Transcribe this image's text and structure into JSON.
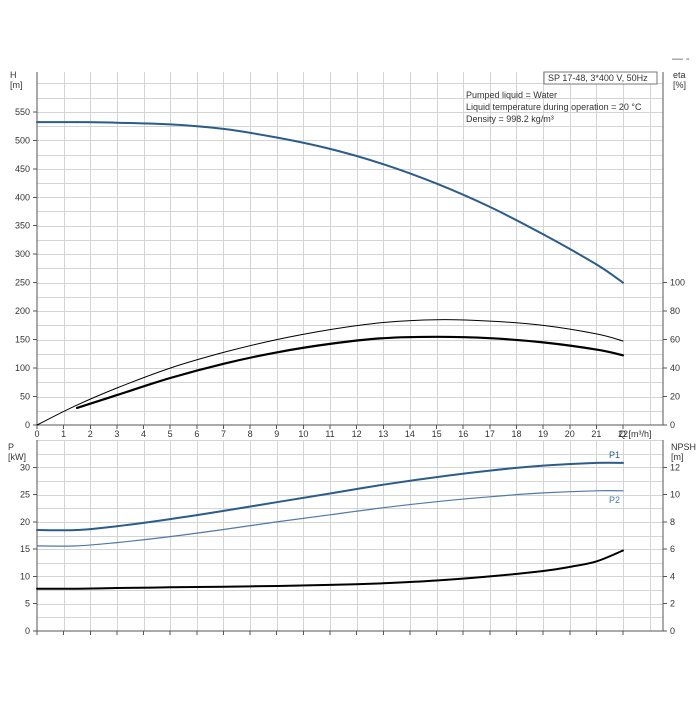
{
  "legend_text": {
    "title": "SP 17-48, 3*400 V, 50Hz",
    "liquid": "Pumped liquid = Water",
    "temperature": "Liquid temperature during operation = 20 °C",
    "density": "Density = 998.2 kg/m³"
  },
  "top_right_marker": "— -",
  "chart_data": [
    {
      "type": "line",
      "title": "",
      "xlabel": "Q [m³/h]",
      "ylabel_left": "H\n[m]",
      "ylabel_right": "eta\n[%]",
      "xlim": [
        0,
        23.5
      ],
      "x_ticks": [
        0,
        1,
        2,
        3,
        4,
        5,
        6,
        7,
        8,
        9,
        10,
        11,
        12,
        13,
        14,
        15,
        16,
        17,
        18,
        19,
        20,
        21,
        22
      ],
      "ylim_left": [
        0,
        620
      ],
      "y_ticks_left": [
        0,
        50,
        100,
        150,
        200,
        250,
        300,
        350,
        400,
        450,
        500,
        550
      ],
      "ylim_right": [
        0,
        248
      ],
      "y_ticks_right": [
        0,
        20,
        40,
        60,
        80,
        100
      ],
      "grid": true,
      "series": [
        {
          "axis": "left",
          "color": "#2b5c8a",
          "width": 2,
          "x": [
            0,
            1.5
          ],
          "y": [
            532,
            532
          ]
        },
        {
          "axis": "left",
          "color": "#2b5c8a",
          "width": 2,
          "x": [
            1.5,
            3,
            5,
            7,
            9,
            11,
            13,
            15,
            17,
            19,
            21,
            22
          ],
          "y": [
            532,
            531,
            528,
            520,
            505,
            485,
            458,
            424,
            383,
            335,
            282,
            250
          ]
        },
        {
          "axis": "right",
          "color": "#000000",
          "width": 1,
          "x": [
            0,
            1.5,
            3,
            5,
            7,
            9,
            11,
            13,
            15,
            17,
            19,
            21,
            22
          ],
          "y": [
            0,
            14,
            26,
            40,
            51,
            60,
            67,
            72,
            74,
            73,
            70,
            64,
            59
          ]
        },
        {
          "axis": "right",
          "color": "#000000",
          "width": 2.2,
          "x": [
            1.5,
            3,
            5,
            7,
            9,
            11,
            13,
            15,
            17,
            19,
            21,
            22
          ],
          "y": [
            12,
            21,
            33,
            43,
            51,
            57,
            61,
            62,
            61,
            58,
            53,
            49
          ]
        }
      ]
    },
    {
      "type": "line",
      "title": "",
      "xlabel": "",
      "ylabel_left": "P\n[kW]",
      "ylabel_right": "NPSH\n[m]",
      "xlim": [
        0,
        23.5
      ],
      "ylim_left": [
        0,
        35
      ],
      "y_ticks_left": [
        0,
        5,
        10,
        15,
        20,
        25,
        30
      ],
      "ylim_right": [
        0,
        14
      ],
      "y_ticks_right": [
        0,
        2,
        4,
        6,
        8,
        10,
        12
      ],
      "grid": true,
      "series": [
        {
          "name": "P1",
          "axis": "left",
          "color": "#2b5c8a",
          "width": 2,
          "x": [
            0,
            1.5,
            3,
            5,
            7,
            9,
            11,
            13,
            15,
            17,
            19,
            21,
            22
          ],
          "y": [
            18.5,
            18.5,
            19.2,
            20.5,
            22.0,
            23.6,
            25.2,
            26.8,
            28.2,
            29.4,
            30.3,
            30.8,
            30.8
          ]
        },
        {
          "name": "P2",
          "axis": "left",
          "color": "#4e7aa8",
          "width": 1.2,
          "x": [
            0,
            1.5,
            3,
            5,
            7,
            9,
            11,
            13,
            15,
            17,
            19,
            21,
            22
          ],
          "y": [
            15.6,
            15.6,
            16.2,
            17.3,
            18.6,
            20.0,
            21.3,
            22.6,
            23.7,
            24.6,
            25.3,
            25.7,
            25.7
          ]
        },
        {
          "axis": "right",
          "color": "#000000",
          "width": 2,
          "x": [
            0,
            1.5,
            3,
            5,
            7,
            9,
            11,
            13,
            15,
            17,
            19,
            20,
            21,
            22
          ],
          "y": [
            3.1,
            3.1,
            3.15,
            3.2,
            3.25,
            3.3,
            3.38,
            3.5,
            3.7,
            4.0,
            4.4,
            4.7,
            5.1,
            5.9
          ]
        }
      ]
    }
  ]
}
